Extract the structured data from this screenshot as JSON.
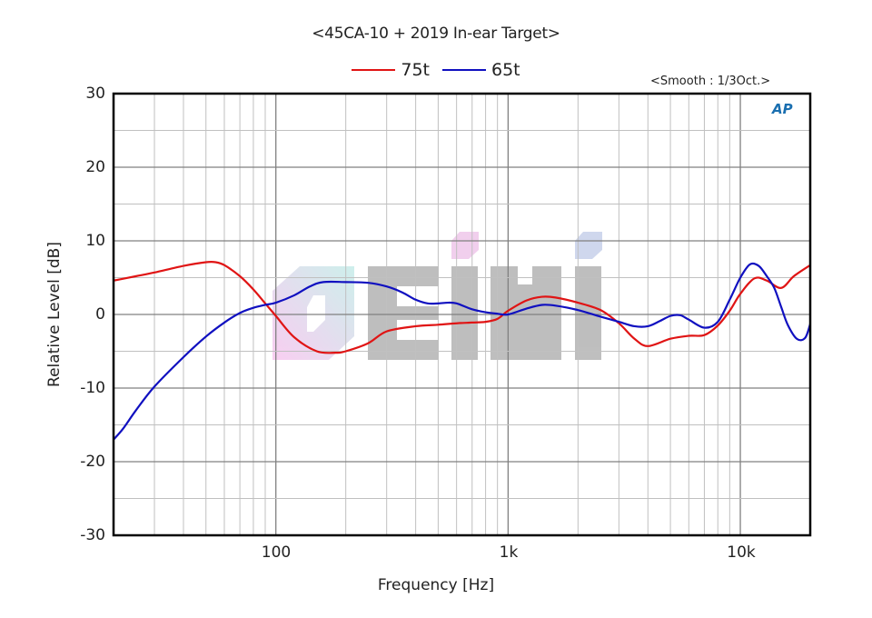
{
  "chart": {
    "title": "<45CA-10 + 2019 In-ear Target>",
    "smooth_note": "<Smooth : 1/3Oct.>",
    "ylabel": "Relative Level [dB]",
    "xlabel": "Frequency [Hz]",
    "logo": "AP",
    "legend": [
      {
        "name": "75t",
        "color": "#e01414"
      },
      {
        "name": "65t",
        "color": "#1010c0"
      }
    ],
    "y_ticks": [
      "30",
      "20",
      "10",
      "0",
      "-10",
      "-20",
      "-30"
    ],
    "x_ticks": [
      "100",
      "1k",
      "10k"
    ]
  },
  "chart_data": {
    "type": "line",
    "title": "<45CA-10 + 2019 In-ear Target>",
    "subtitle": "<Smooth : 1/3Oct.>",
    "xlabel": "Frequency [Hz]",
    "ylabel": "Relative Level [dB]",
    "xscale": "log",
    "xlim": [
      20,
      20000
    ],
    "ylim": [
      -30,
      30
    ],
    "grid": true,
    "legend_position": "top-center",
    "x_tick_labels": [
      "100",
      "1k",
      "10k"
    ],
    "y_tick_labels": [
      "30",
      "20",
      "10",
      "0",
      "-10",
      "-20",
      "-30"
    ],
    "series": [
      {
        "name": "75t",
        "color": "#e01414",
        "x": [
          20,
          25,
          30,
          40,
          50,
          55,
          60,
          70,
          80,
          90,
          100,
          120,
          150,
          180,
          200,
          250,
          300,
          400,
          500,
          600,
          700,
          800,
          900,
          1000,
          1200,
          1400,
          1600,
          2000,
          2500,
          3000,
          3500,
          4000,
          5000,
          6000,
          7000,
          8000,
          9000,
          10000,
          11500,
          13000,
          15000,
          17000,
          20000
        ],
        "y": [
          4.6,
          5.2,
          5.7,
          6.6,
          7.1,
          7.1,
          6.7,
          5.2,
          3.4,
          1.5,
          -0.2,
          -3.1,
          -5.0,
          -5.2,
          -5.0,
          -3.9,
          -2.3,
          -1.6,
          -1.4,
          -1.2,
          -1.1,
          -1.0,
          -0.6,
          0.5,
          1.9,
          2.4,
          2.3,
          1.6,
          0.6,
          -1.2,
          -3.3,
          -4.3,
          -3.3,
          -2.9,
          -2.8,
          -1.5,
          0.5,
          2.8,
          4.9,
          4.6,
          3.6,
          5.2,
          6.7
        ]
      },
      {
        "name": "65t",
        "color": "#1010c0",
        "x": [
          20,
          22,
          25,
          30,
          40,
          50,
          60,
          70,
          80,
          90,
          100,
          120,
          140,
          160,
          200,
          250,
          300,
          350,
          400,
          450,
          500,
          550,
          600,
          700,
          800,
          900,
          1000,
          1200,
          1400,
          1600,
          2000,
          2500,
          3000,
          3500,
          4000,
          4500,
          5000,
          5500,
          6000,
          7000,
          8000,
          9000,
          10000,
          11000,
          12000,
          13000,
          14000,
          15000,
          16000,
          17500,
          19000,
          20000
        ],
        "y": [
          -17.0,
          -15.5,
          -13.0,
          -9.8,
          -5.8,
          -3.0,
          -1.1,
          0.2,
          0.9,
          1.3,
          1.6,
          2.6,
          3.8,
          4.4,
          4.4,
          4.3,
          3.8,
          3.0,
          2.0,
          1.5,
          1.5,
          1.6,
          1.5,
          0.7,
          0.3,
          0.1,
          0.0,
          0.8,
          1.3,
          1.2,
          0.6,
          -0.3,
          -1.0,
          -1.6,
          -1.6,
          -0.9,
          -0.2,
          -0.1,
          -0.7,
          -1.8,
          -1.0,
          2.0,
          5.0,
          6.8,
          6.6,
          5.2,
          3.6,
          1.0,
          -1.4,
          -3.3,
          -3.2,
          -1.3
        ]
      }
    ]
  }
}
